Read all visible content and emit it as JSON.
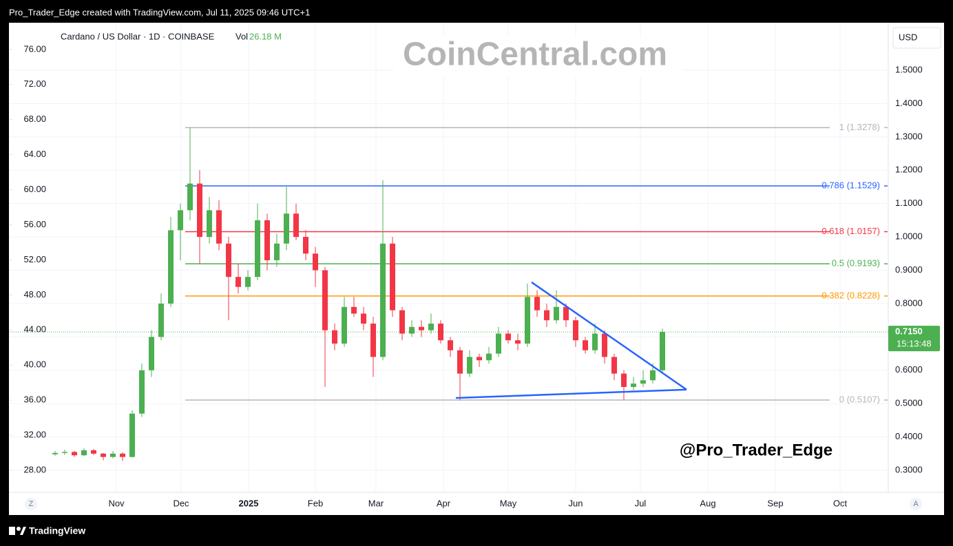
{
  "header": {
    "text": "Pro_Trader_Edge created with TradingView.com, Jul 11, 2025 09:46 UTC+1"
  },
  "footer": {
    "brand": "TradingView"
  },
  "chart_data": {
    "type": "candlestick",
    "title": "Cardano / US Dollar · 1D · COINBASE",
    "volume_label": "Vol",
    "volume": "26.18 M",
    "watermark": "CoinCentral.com",
    "signature": "@Pro_Trader_Edge",
    "currency": "USD",
    "scale_buttons": [
      "Z",
      "A"
    ],
    "up_color": "#4caf50",
    "down_color": "#f23645",
    "grid": true,
    "categories": [
      "Nov",
      "Dec",
      "2025",
      "Feb",
      "Mar",
      "Apr",
      "May",
      "Jun",
      "Jul",
      "Aug",
      "Sep",
      "Oct"
    ],
    "candles": [
      [
        0.348,
        0.358,
        0.344,
        0.352
      ],
      [
        0.352,
        0.362,
        0.346,
        0.355
      ],
      [
        0.355,
        0.358,
        0.34,
        0.345
      ],
      [
        0.345,
        0.366,
        0.343,
        0.36
      ],
      [
        0.36,
        0.364,
        0.346,
        0.35
      ],
      [
        0.35,
        0.352,
        0.33,
        0.34
      ],
      [
        0.34,
        0.358,
        0.336,
        0.35
      ],
      [
        0.35,
        0.354,
        0.328,
        0.34
      ],
      [
        0.34,
        0.48,
        0.338,
        0.47
      ],
      [
        0.47,
        0.62,
        0.46,
        0.6
      ],
      [
        0.6,
        0.72,
        0.58,
        0.7
      ],
      [
        0.7,
        0.83,
        0.69,
        0.8
      ],
      [
        0.8,
        1.06,
        0.79,
        1.02
      ],
      [
        1.02,
        1.1,
        0.93,
        1.08
      ],
      [
        1.08,
        1.328,
        1.05,
        1.16
      ],
      [
        1.16,
        1.2,
        0.92,
        1.0
      ],
      [
        1.0,
        1.12,
        0.98,
        1.08
      ],
      [
        1.08,
        1.11,
        0.96,
        0.98
      ],
      [
        0.98,
        1.0,
        0.75,
        0.88
      ],
      [
        0.88,
        0.92,
        0.83,
        0.85
      ],
      [
        0.85,
        0.9,
        0.84,
        0.88
      ],
      [
        0.88,
        1.1,
        0.87,
        1.05
      ],
      [
        1.05,
        1.07,
        0.9,
        0.93
      ],
      [
        0.93,
        1.01,
        0.91,
        0.98
      ],
      [
        0.98,
        1.15,
        0.96,
        1.07
      ],
      [
        1.07,
        1.1,
        0.99,
        1.0
      ],
      [
        1.0,
        1.02,
        0.93,
        0.95
      ],
      [
        0.95,
        0.97,
        0.85,
        0.9
      ],
      [
        0.9,
        0.91,
        0.55,
        0.72
      ],
      [
        0.72,
        0.74,
        0.66,
        0.68
      ],
      [
        0.68,
        0.82,
        0.67,
        0.79
      ],
      [
        0.79,
        0.82,
        0.76,
        0.77
      ],
      [
        0.77,
        0.79,
        0.72,
        0.74
      ],
      [
        0.74,
        0.76,
        0.58,
        0.64
      ],
      [
        0.64,
        1.17,
        0.63,
        0.98
      ],
      [
        0.98,
        1.0,
        0.76,
        0.78
      ],
      [
        0.78,
        0.79,
        0.69,
        0.71
      ],
      [
        0.71,
        0.75,
        0.7,
        0.73
      ],
      [
        0.73,
        0.75,
        0.7,
        0.72
      ],
      [
        0.72,
        0.77,
        0.71,
        0.74
      ],
      [
        0.74,
        0.75,
        0.68,
        0.69
      ],
      [
        0.69,
        0.7,
        0.64,
        0.66
      ],
      [
        0.66,
        0.67,
        0.51,
        0.59
      ],
      [
        0.59,
        0.66,
        0.58,
        0.64
      ],
      [
        0.64,
        0.65,
        0.61,
        0.63
      ],
      [
        0.63,
        0.67,
        0.62,
        0.65
      ],
      [
        0.65,
        0.73,
        0.64,
        0.71
      ],
      [
        0.71,
        0.72,
        0.68,
        0.69
      ],
      [
        0.69,
        0.71,
        0.66,
        0.68
      ],
      [
        0.68,
        0.86,
        0.67,
        0.82
      ],
      [
        0.82,
        0.84,
        0.76,
        0.78
      ],
      [
        0.78,
        0.8,
        0.73,
        0.75
      ],
      [
        0.75,
        0.84,
        0.74,
        0.79
      ],
      [
        0.79,
        0.8,
        0.73,
        0.75
      ],
      [
        0.75,
        0.76,
        0.67,
        0.69
      ],
      [
        0.69,
        0.7,
        0.65,
        0.66
      ],
      [
        0.66,
        0.74,
        0.65,
        0.71
      ],
      [
        0.71,
        0.72,
        0.62,
        0.64
      ],
      [
        0.64,
        0.65,
        0.57,
        0.59
      ],
      [
        0.59,
        0.6,
        0.51,
        0.55
      ],
      [
        0.55,
        0.58,
        0.54,
        0.56
      ],
      [
        0.56,
        0.6,
        0.55,
        0.57
      ],
      [
        0.57,
        0.62,
        0.56,
        0.6
      ],
      [
        0.6,
        0.725,
        0.595,
        0.715
      ]
    ],
    "ylim": [
      0.234,
      1.628
    ],
    "yticks": [
      {
        "value": 0.3,
        "label": "0.3000"
      },
      {
        "value": 0.4,
        "label": "0.4000"
      },
      {
        "value": 0.5,
        "label": "0.5000"
      },
      {
        "value": 0.6,
        "label": "0.6000"
      },
      {
        "value": 0.7,
        "label": "0.7000"
      },
      {
        "value": 0.8,
        "label": "0.8000"
      },
      {
        "value": 0.9,
        "label": "0.9000"
      },
      {
        "value": 1.0,
        "label": "1.0000"
      },
      {
        "value": 1.1,
        "label": "1.1000"
      },
      {
        "value": 1.2,
        "label": "1.2000"
      },
      {
        "value": 1.3,
        "label": "1.3000"
      },
      {
        "value": 1.4,
        "label": "1.4000"
      },
      {
        "value": 1.5,
        "label": "1.5000"
      }
    ],
    "y2lim": [
      25.49,
      78.5
    ],
    "y2ticks": [
      {
        "value": 28,
        "label": "28.00"
      },
      {
        "value": 32,
        "label": "32.00"
      },
      {
        "value": 36,
        "label": "36.00"
      },
      {
        "value": 40,
        "label": "40.00"
      },
      {
        "value": 44,
        "label": "44.00"
      },
      {
        "value": 48,
        "label": "48.00"
      },
      {
        "value": 52,
        "label": "52.00"
      },
      {
        "value": 56,
        "label": "56.00"
      },
      {
        "value": 60,
        "label": "60.00"
      },
      {
        "value": 64,
        "label": "64.00"
      },
      {
        "value": 68,
        "label": "68.00"
      },
      {
        "value": 72,
        "label": "72.00"
      },
      {
        "value": 76,
        "label": "76.00"
      }
    ],
    "fib_levels": [
      {
        "label": "1 (1.3278)",
        "value": 1.3278,
        "color": "#b2b5be"
      },
      {
        "label": "0.786 (1.1529)",
        "value": 1.1529,
        "color": "#2962ff"
      },
      {
        "label": "0.618 (1.0157)",
        "value": 1.0157,
        "color": "#f23645"
      },
      {
        "label": "0.5 (0.9193)",
        "value": 0.9193,
        "color": "#4caf50"
      },
      {
        "label": "0.382 (0.8228)",
        "value": 0.8228,
        "color": "#ff9800"
      },
      {
        "label": "0 (0.5107)",
        "value": 0.5107,
        "color": "#b2b5be"
      }
    ],
    "trendlines": [
      {
        "color": "#2962ff",
        "start": 0.864,
        "end": 0.542
      },
      {
        "color": "#2962ff",
        "start": 0.517,
        "end": 0.542
      }
    ],
    "last_price": {
      "value": 0.715,
      "label": "0.7150"
    },
    "countdown": "15:13:48",
    "last_price_color": "#4caf50"
  }
}
